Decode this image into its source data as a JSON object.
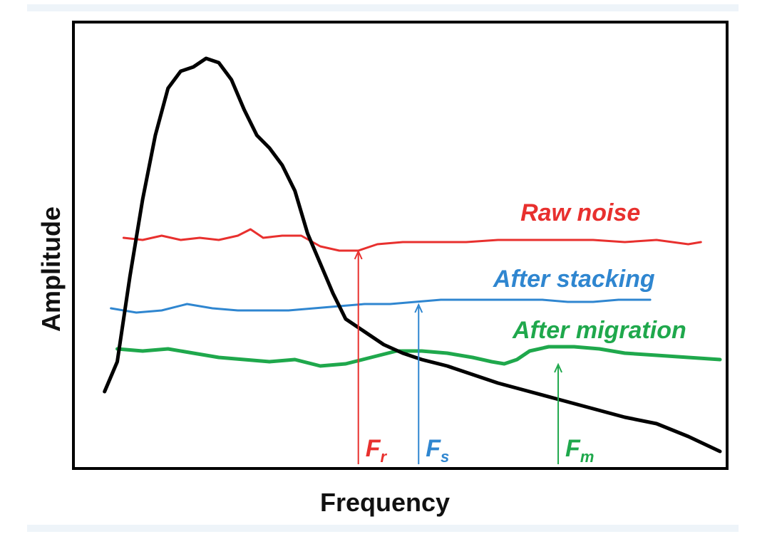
{
  "colors": {
    "signal": "#000000",
    "raw_noise": "#e8302e",
    "after_stacking": "#2f86d0",
    "after_migration": "#1fa84c"
  },
  "chart_data": {
    "type": "line",
    "xlabel": "Frequency",
    "ylabel": "Amplitude",
    "xlim": [
      0,
      100
    ],
    "ylim": [
      0,
      100
    ],
    "grid": false,
    "ticks": false,
    "series": [
      {
        "id": "signal",
        "name": "",
        "color": "#000000",
        "points": [
          [
            3,
            15
          ],
          [
            5,
            22
          ],
          [
            7,
            42
          ],
          [
            9,
            60
          ],
          [
            11,
            75
          ],
          [
            13,
            86
          ],
          [
            15,
            90
          ],
          [
            17,
            91
          ],
          [
            19,
            93
          ],
          [
            21,
            92
          ],
          [
            23,
            88
          ],
          [
            25,
            81
          ],
          [
            27,
            75
          ],
          [
            29,
            72
          ],
          [
            31,
            68
          ],
          [
            33,
            62
          ],
          [
            35,
            52
          ],
          [
            37,
            45
          ],
          [
            39,
            38
          ],
          [
            41,
            32
          ],
          [
            43,
            30
          ],
          [
            45,
            28
          ],
          [
            47,
            26
          ],
          [
            50,
            24
          ],
          [
            53,
            22.5
          ],
          [
            57,
            21
          ],
          [
            61,
            19
          ],
          [
            65,
            17
          ],
          [
            70,
            15
          ],
          [
            75,
            13
          ],
          [
            80,
            11
          ],
          [
            85,
            9
          ],
          [
            90,
            7.5
          ],
          [
            95,
            4.5
          ],
          [
            100,
            1
          ]
        ]
      },
      {
        "id": "raw_noise",
        "name": "Raw noise",
        "color": "#e8302e",
        "points": [
          [
            6,
            51
          ],
          [
            9,
            50.5
          ],
          [
            12,
            51.5
          ],
          [
            15,
            50.5
          ],
          [
            18,
            51
          ],
          [
            21,
            50.5
          ],
          [
            24,
            51.5
          ],
          [
            26,
            53
          ],
          [
            28,
            51
          ],
          [
            31,
            51.5
          ],
          [
            34,
            51.5
          ],
          [
            37,
            49
          ],
          [
            40,
            48
          ],
          [
            43,
            48
          ],
          [
            46,
            49.5
          ],
          [
            50,
            50
          ],
          [
            55,
            50
          ],
          [
            60,
            50
          ],
          [
            65,
            50.5
          ],
          [
            70,
            50.5
          ],
          [
            75,
            50.5
          ],
          [
            80,
            50.5
          ],
          [
            85,
            50
          ],
          [
            90,
            50.5
          ],
          [
            95,
            49.5
          ],
          [
            97,
            50
          ]
        ]
      },
      {
        "id": "after_stacking",
        "name": "After stacking",
        "color": "#2f86d0",
        "points": [
          [
            4,
            34.5
          ],
          [
            8,
            33.5
          ],
          [
            12,
            34
          ],
          [
            16,
            35.5
          ],
          [
            20,
            34.5
          ],
          [
            24,
            34
          ],
          [
            28,
            34
          ],
          [
            32,
            34
          ],
          [
            36,
            34.5
          ],
          [
            40,
            35
          ],
          [
            44,
            35.5
          ],
          [
            48,
            35.5
          ],
          [
            52,
            36
          ],
          [
            56,
            36.5
          ],
          [
            60,
            36.5
          ],
          [
            64,
            36.5
          ],
          [
            68,
            36.5
          ],
          [
            72,
            36.5
          ],
          [
            76,
            36
          ],
          [
            80,
            36
          ],
          [
            84,
            36.5
          ],
          [
            89,
            36.5
          ]
        ]
      },
      {
        "id": "after_migration",
        "name": "After migration",
        "color": "#1fa84c",
        "points": [
          [
            5,
            25
          ],
          [
            9,
            24.5
          ],
          [
            13,
            25
          ],
          [
            17,
            24
          ],
          [
            21,
            23
          ],
          [
            25,
            22.5
          ],
          [
            29,
            22
          ],
          [
            33,
            22.5
          ],
          [
            37,
            21
          ],
          [
            41,
            21.5
          ],
          [
            45,
            23
          ],
          [
            49,
            24.5
          ],
          [
            53,
            24.5
          ],
          [
            57,
            24
          ],
          [
            61,
            23
          ],
          [
            64,
            22
          ],
          [
            66,
            21.5
          ],
          [
            68,
            22.5
          ],
          [
            70,
            24.5
          ],
          [
            73,
            25.5
          ],
          [
            77,
            25.5
          ],
          [
            81,
            25
          ],
          [
            85,
            24
          ],
          [
            90,
            23.5
          ],
          [
            95,
            23
          ],
          [
            100,
            22.5
          ]
        ]
      }
    ],
    "annotations": [
      {
        "id": "fr",
        "text": "F",
        "sub": "r",
        "x": 43,
        "y": 48,
        "color": "#e8302e"
      },
      {
        "id": "fs",
        "text": "F",
        "sub": "s",
        "x": 52.5,
        "y": 35.5,
        "color": "#2f86d0"
      },
      {
        "id": "fm",
        "text": "F",
        "sub": "m",
        "x": 74.5,
        "y": 21.5,
        "color": "#1fa84c"
      }
    ]
  }
}
